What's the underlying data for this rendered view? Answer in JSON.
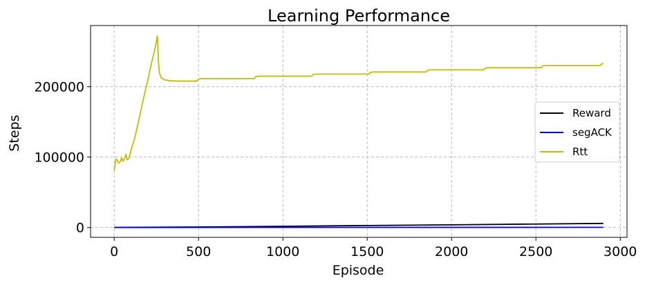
{
  "chart_data": {
    "type": "line",
    "title": "Learning Performance",
    "xlabel": "Episode",
    "ylabel": "Steps",
    "xlim": [
      -140,
      3040
    ],
    "ylim": [
      -14000,
      287000
    ],
    "xticks": [
      0,
      500,
      1000,
      1500,
      2000,
      2500,
      3000
    ],
    "yticks": [
      0,
      100000,
      200000
    ],
    "grid": true,
    "legend_position": "right",
    "series": [
      {
        "name": "Reward",
        "color": "#000000",
        "points": [
          [
            0,
            100
          ],
          [
            500,
            700
          ],
          [
            1000,
            1700
          ],
          [
            1500,
            2800
          ],
          [
            2000,
            3800
          ],
          [
            2500,
            4900
          ],
          [
            2900,
            5800
          ]
        ]
      },
      {
        "name": "segACK",
        "color": "#0000ff",
        "points": [
          [
            0,
            0
          ],
          [
            1000,
            100
          ],
          [
            2000,
            150
          ],
          [
            2900,
            200
          ]
        ]
      },
      {
        "name": "Rtt",
        "color": "#bfbf00",
        "points": [
          [
            0,
            81000
          ],
          [
            5,
            88000
          ],
          [
            10,
            97000
          ],
          [
            18,
            96000
          ],
          [
            25,
            92000
          ],
          [
            35,
            93000
          ],
          [
            45,
            99000
          ],
          [
            52,
            94000
          ],
          [
            62,
            98000
          ],
          [
            70,
            104000
          ],
          [
            78,
            96000
          ],
          [
            88,
            99000
          ],
          [
            98,
            108000
          ],
          [
            108,
            116000
          ],
          [
            120,
            125000
          ],
          [
            140,
            146000
          ],
          [
            160,
            168000
          ],
          [
            180,
            190000
          ],
          [
            200,
            210000
          ],
          [
            220,
            232000
          ],
          [
            240,
            252000
          ],
          [
            250,
            264000
          ],
          [
            255,
            272000
          ],
          [
            258,
            266000
          ],
          [
            262,
            236000
          ],
          [
            268,
            220000
          ],
          [
            278,
            213000
          ],
          [
            295,
            210000
          ],
          [
            330,
            208500
          ],
          [
            380,
            208000
          ],
          [
            490,
            208000
          ],
          [
            500,
            211000
          ],
          [
            520,
            211500
          ],
          [
            830,
            211500
          ],
          [
            840,
            214500
          ],
          [
            860,
            215000
          ],
          [
            1170,
            215000
          ],
          [
            1180,
            217500
          ],
          [
            1200,
            218000
          ],
          [
            1510,
            218000
          ],
          [
            1520,
            220500
          ],
          [
            1540,
            221000
          ],
          [
            1850,
            221000
          ],
          [
            1860,
            223500
          ],
          [
            1880,
            224000
          ],
          [
            2190,
            224000
          ],
          [
            2200,
            226500
          ],
          [
            2220,
            227000
          ],
          [
            2530,
            227000
          ],
          [
            2540,
            229500
          ],
          [
            2560,
            230000
          ],
          [
            2880,
            230000
          ],
          [
            2890,
            232500
          ],
          [
            2900,
            233000
          ]
        ]
      }
    ]
  }
}
